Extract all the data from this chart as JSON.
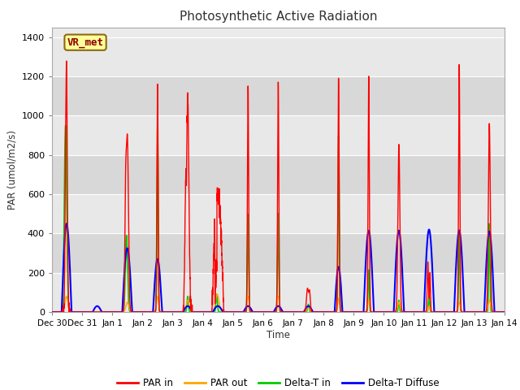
{
  "title": "Photosynthetic Active Radiation",
  "ylabel": "PAR (umol/m2/s)",
  "xlabel": "Time",
  "label_text": "VR_met",
  "ylim": [
    0,
    1450
  ],
  "yticks": [
    0,
    200,
    400,
    600,
    800,
    1000,
    1200,
    1400
  ],
  "xtick_labels": [
    "Dec 30",
    "Dec 31",
    "Jan 1",
    "Jan 2",
    "Jan 3",
    "Jan 4",
    "Jan 5",
    "Jan 6",
    "Jan 7",
    "Jan 8",
    "Jan 9",
    "Jan 10",
    "Jan 11",
    "Jan 12",
    "Jan 13",
    "Jan 14"
  ],
  "xtick_positions": [
    0,
    1,
    2,
    3,
    4,
    5,
    6,
    7,
    8,
    9,
    10,
    11,
    12,
    13,
    14,
    15
  ],
  "colors": {
    "PAR_in": "#FF0000",
    "PAR_out": "#FFA500",
    "Delta_T_in": "#00CC00",
    "Delta_T_Diffuse": "#0000FF"
  },
  "legend_labels": [
    "PAR in",
    "PAR out",
    "Delta-T in",
    "Delta-T Diffuse"
  ],
  "plot_bg_color": "#EBEBEB",
  "grid_color": "#FFFFFF",
  "label_box_color": "#FFFF99",
  "label_box_edge": "#8B6914",
  "label_text_color": "#8B0000",
  "band_colors": [
    "#E0E0E0",
    "#CACACA"
  ],
  "fig_bg": "#FFFFFF"
}
